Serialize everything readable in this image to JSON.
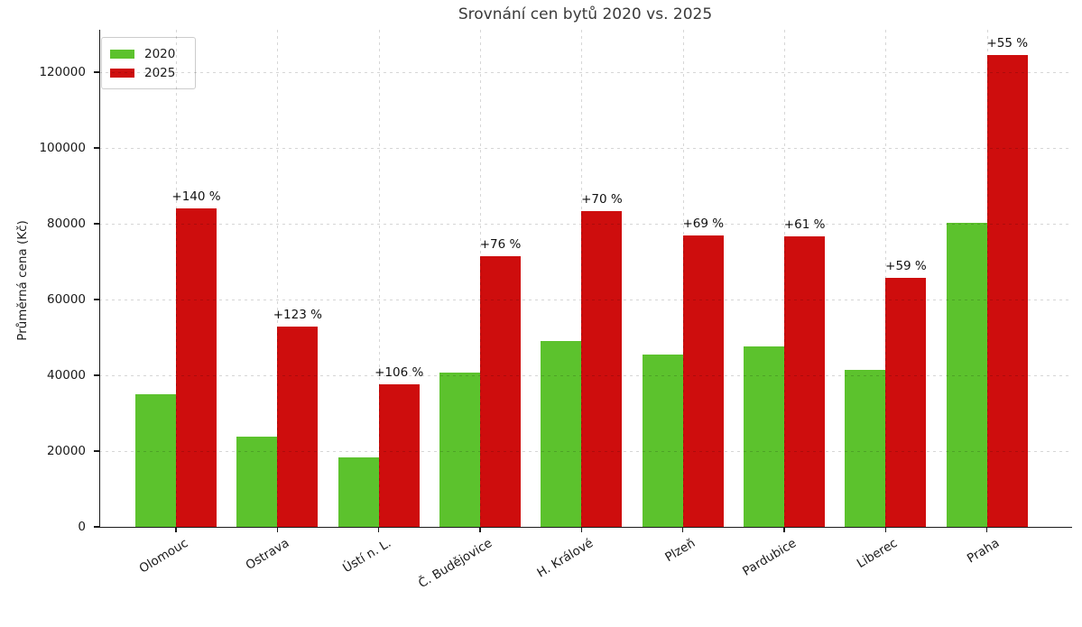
{
  "title": "Srovnání cen bytů 2020 vs. 2025",
  "ylabel": "Průměrná cena (Kč)",
  "colors": {
    "bar_2020": "#5CC22D",
    "bar_2025": "#CE0D0D",
    "title_text": "#3A3A3A",
    "tick_text": "#1A1A1A",
    "axis_spine": "#1A1A1A",
    "grid": "rgba(0,0,0,0.16)",
    "legend_border": "#CCCCCC"
  },
  "legend": {
    "items": [
      {
        "label": "2020",
        "color": "#5CC22D"
      },
      {
        "label": "2025",
        "color": "#CE0D0D"
      }
    ]
  },
  "chart_data": {
    "type": "bar",
    "title": "Srovnání cen bytů 2020 vs. 2025",
    "xlabel": "",
    "ylabel": "Průměrná cena (Kč)",
    "categories": [
      "Olomouc",
      "Ostrava",
      "Ústí n. L.",
      "Č. Budějovice",
      "H. Králové",
      "Plzeň",
      "Pardubice",
      "Liberec",
      "Praha"
    ],
    "series": [
      {
        "name": "2020",
        "color": "#5CC22D",
        "values": [
          35000,
          23700,
          18300,
          40600,
          49000,
          45500,
          47600,
          41400,
          80300
        ]
      },
      {
        "name": "2025",
        "color": "#CE0D0D",
        "values": [
          84000,
          52900,
          37700,
          71500,
          83300,
          76900,
          76700,
          65800,
          124500
        ]
      }
    ],
    "bar_annotations": {
      "above_series": "2025",
      "labels": [
        "+140 %",
        "+123 %",
        "+106 %",
        "+76 %",
        "+70 %",
        "+69 %",
        "+61 %",
        "+59 %",
        "+55 %"
      ]
    },
    "yticks": [
      0,
      20000,
      40000,
      60000,
      80000,
      100000,
      120000
    ],
    "ylim": [
      0,
      131200
    ],
    "grid": true,
    "grid_style": "dashed",
    "legend_position": "upper left",
    "x_tick_label_rotation_deg": 31
  }
}
